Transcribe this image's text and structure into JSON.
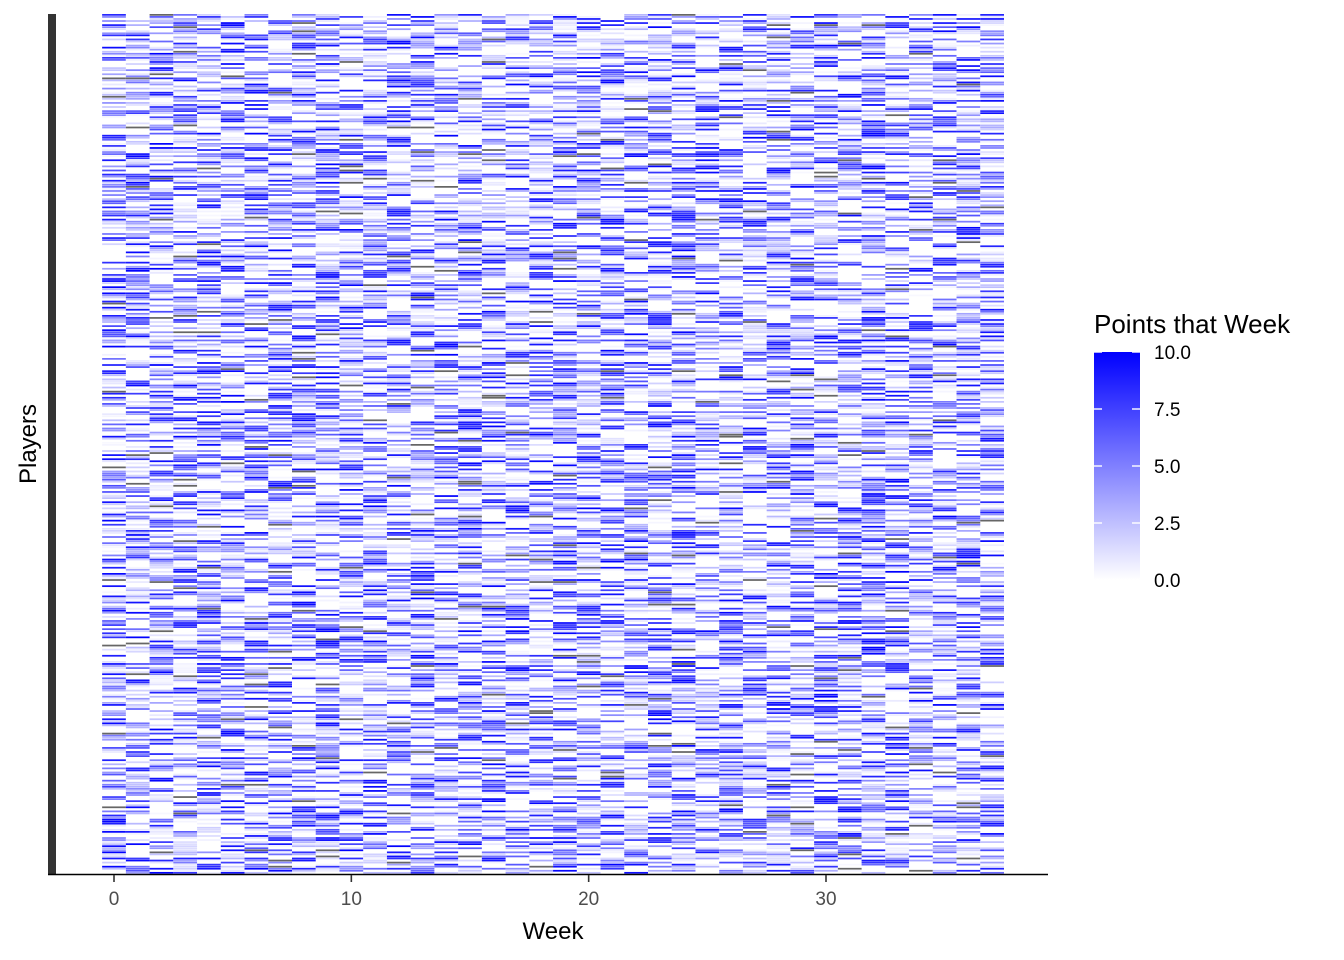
{
  "chart_data": {
    "type": "heatmap",
    "title": "",
    "xlabel": "Week",
    "ylabel": "Players",
    "x_ticks": [
      0,
      10,
      20,
      30
    ],
    "x_tick_labels": [
      "0",
      "10",
      "20",
      "30"
    ],
    "xlim": [
      -3,
      39
    ],
    "weeks": 38,
    "players": 420,
    "y_ticks_shown": false,
    "grid": false,
    "na_color": "#666666",
    "low_color": "#ffffff",
    "high_color": "#0000ff",
    "value_note": "Per-cell values are not individually readable; cells are a dense grid of points per player per week on a 0 to 10 scale, mostly between 0 and 5, with missing (NA) cells in grey and empty (no record) cells white.",
    "legend": {
      "title": "Points that Week",
      "position": "right",
      "range": [
        0,
        10
      ],
      "breaks": [
        10.0,
        7.5,
        5.0,
        2.5,
        0.0
      ],
      "labels": [
        "10.0",
        "7.5",
        "5.0",
        "2.5",
        "0.0"
      ]
    }
  }
}
